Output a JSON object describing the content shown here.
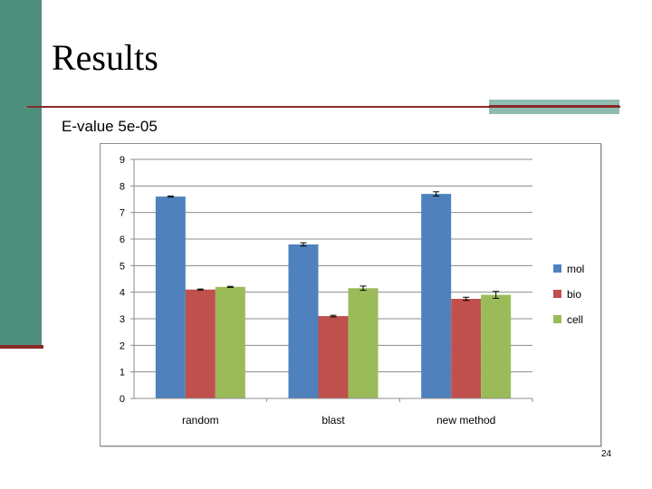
{
  "slide": {
    "title": "Results",
    "subtitle": "E-value 5e-05",
    "page_number": "24"
  },
  "colors": {
    "sidebar": "#4e8e7c",
    "rule": "#8b2a2a",
    "rule_accent": "#8fbcb0",
    "mol": "#4f81bd",
    "bio": "#c0504d",
    "cell": "#9bbb59"
  },
  "chart_data": {
    "type": "bar",
    "categories": [
      "random",
      "blast",
      "new method"
    ],
    "series": [
      {
        "name": "mol",
        "color": "#4f81bd",
        "values": [
          7.6,
          5.8,
          7.7
        ],
        "errors": [
          0.02,
          0.06,
          0.08
        ]
      },
      {
        "name": "bio",
        "color": "#c0504d",
        "values": [
          4.1,
          3.1,
          3.75
        ],
        "errors": [
          0.02,
          0.03,
          0.06
        ]
      },
      {
        "name": "cell",
        "color": "#9bbb59",
        "values": [
          4.2,
          4.15,
          3.9
        ],
        "errors": [
          0.02,
          0.08,
          0.13
        ]
      }
    ],
    "ylim": [
      0,
      9
    ],
    "yticks": [
      "0",
      "1",
      "2",
      "3",
      "4",
      "5",
      "6",
      "7",
      "8",
      "9"
    ],
    "grid": true,
    "legend": "right",
    "error_bars": true
  }
}
